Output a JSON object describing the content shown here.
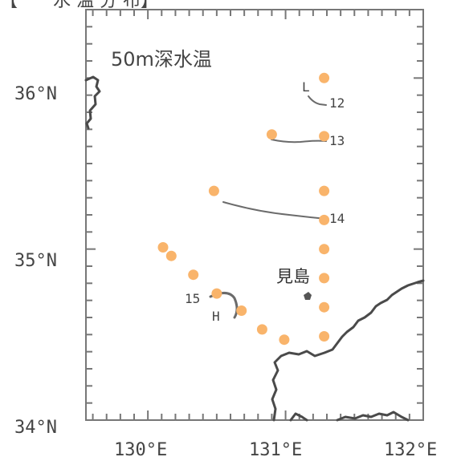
{
  "header": {
    "partial_text": "【　　水 温 分 布】"
  },
  "map": {
    "title": "50m深水温",
    "lat_labels": [
      "36°N",
      "35°N",
      "34°N"
    ],
    "lon_labels": [
      "130°E",
      "131°E",
      "132°E"
    ],
    "place_name": "見島",
    "markers": {
      "low": "L",
      "high": "H"
    },
    "contours": [
      {
        "label": "12",
        "value": 12
      },
      {
        "label": "13",
        "value": 13
      },
      {
        "label": "14",
        "value": 14
      },
      {
        "label": "15",
        "value": 15
      }
    ],
    "stations": [
      {
        "lon": 131.28,
        "lat": 36.0
      },
      {
        "lon": 130.9,
        "lat": 35.67
      },
      {
        "lon": 131.28,
        "lat": 35.66
      },
      {
        "lon": 130.48,
        "lat": 35.34
      },
      {
        "lon": 131.28,
        "lat": 35.34
      },
      {
        "lon": 131.28,
        "lat": 35.17
      },
      {
        "lon": 130.11,
        "lat": 35.01
      },
      {
        "lon": 130.17,
        "lat": 34.96
      },
      {
        "lon": 131.28,
        "lat": 35.0
      },
      {
        "lon": 130.33,
        "lat": 34.85
      },
      {
        "lon": 131.28,
        "lat": 34.83
      },
      {
        "lon": 130.5,
        "lat": 34.74
      },
      {
        "lon": 130.68,
        "lat": 34.64
      },
      {
        "lon": 131.28,
        "lat": 34.66
      },
      {
        "lon": 130.83,
        "lat": 34.53
      },
      {
        "lon": 130.99,
        "lat": 34.47
      },
      {
        "lon": 131.28,
        "lat": 34.49
      }
    ],
    "colors": {
      "station": "#f9b46b",
      "contour": "#6b6b6b",
      "coast": "#4a4a4a",
      "frame": "#777777",
      "text": "#444444"
    }
  }
}
